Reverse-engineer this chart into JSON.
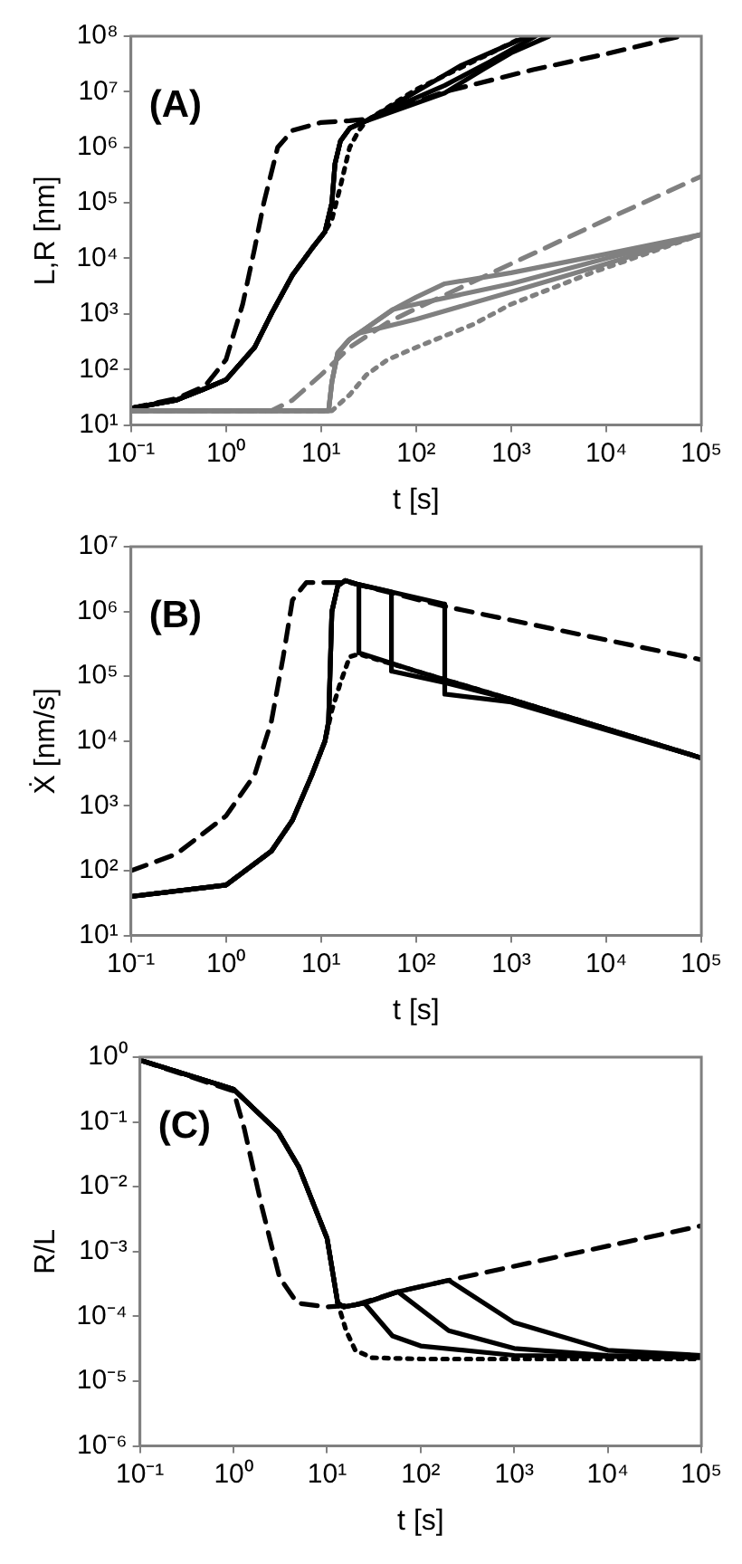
{
  "chart_data": [
    {
      "type": "line",
      "xlabel": "t [s]",
      "ylabel": "L,R [nm]",
      "annotations": [
        "(A)"
      ],
      "log": "xy",
      "xlim": [
        0.1,
        100000
      ],
      "ylim": [
        10,
        100000000
      ],
      "xticks": [
        {
          "value": 0.1,
          "label": "10⁻¹"
        },
        {
          "value": 1,
          "label": "10⁰"
        },
        {
          "value": 10,
          "label": "10¹"
        },
        {
          "value": 100,
          "label": "10²"
        },
        {
          "value": 1000,
          "label": "10³"
        },
        {
          "value": 10000,
          "label": "10⁴"
        },
        {
          "value": 100000,
          "label": "10⁵"
        }
      ],
      "yticks": [
        {
          "value": 10,
          "label": "10¹"
        },
        {
          "value": 100,
          "label": "10²"
        },
        {
          "value": 1000,
          "label": "10³"
        },
        {
          "value": 10000,
          "label": "10⁴"
        },
        {
          "value": 100000,
          "label": "10⁵"
        },
        {
          "value": 1000000,
          "label": "10⁶"
        },
        {
          "value": 10000000,
          "label": "10⁷"
        },
        {
          "value": 100000000,
          "label": "10⁸"
        }
      ],
      "series": [
        {
          "color": "#808080",
          "line_style": "dashed",
          "x": [
            0.1,
            3,
            5,
            10,
            20,
            50,
            100,
            1000,
            10000,
            100000
          ],
          "values": [
            18,
            18,
            28,
            80,
            250,
            700,
            1250,
            8000,
            50000,
            300000
          ]
        },
        {
          "color": "#808080",
          "line_style": "dotted",
          "x": [
            0.1,
            13,
            16,
            20,
            30,
            50,
            100,
            400,
            1000,
            7000,
            100000
          ],
          "values": [
            18,
            18,
            25,
            35,
            80,
            150,
            250,
            650,
            1500,
            5500,
            27000
          ]
        },
        {
          "color": "#808080",
          "line_style": "solid",
          "x": [
            0.1,
            12,
            13,
            15,
            20,
            25,
            100,
            1000,
            10000,
            100000
          ],
          "values": [
            18,
            18,
            60,
            200,
            350,
            450,
            800,
            2500,
            8000,
            27000
          ]
        },
        {
          "color": "#808080",
          "line_style": "solid",
          "x": [
            0.1,
            12,
            13,
            15,
            20,
            25,
            57,
            100,
            1000,
            10000,
            100000
          ],
          "values": [
            18,
            18,
            60,
            200,
            350,
            450,
            1200,
            1500,
            3500,
            10000,
            27000
          ]
        },
        {
          "color": "#808080",
          "line_style": "solid",
          "x": [
            0.1,
            12,
            13,
            15,
            20,
            25,
            57,
            100,
            200,
            1000,
            10000,
            100000
          ],
          "values": [
            18,
            18,
            60,
            200,
            350,
            450,
            1200,
            2000,
            3500,
            5500,
            12000,
            27000
          ]
        },
        {
          "color": "#000000",
          "line_style": "dashed",
          "x": [
            0.1,
            0.3,
            0.6,
            1,
            1.5,
            2,
            2.5,
            3.5,
            5,
            10,
            20,
            30,
            200,
            1700,
            10000,
            60000
          ],
          "values": [
            20,
            30,
            50,
            150,
            1500,
            15000,
            100000,
            1000000,
            2000000,
            2800000,
            3000000,
            3200000,
            10000000,
            25000000,
            48000000,
            100000000
          ]
        },
        {
          "color": "#000000",
          "line_style": "dotted",
          "x": [
            0.1,
            0.3,
            0.6,
            1,
            2,
            3,
            5,
            8,
            11,
            13,
            16,
            20,
            25,
            30,
            100,
            400,
            1400
          ],
          "values": [
            20,
            28,
            45,
            65,
            250,
            1000,
            5000,
            15000,
            30000,
            50000,
            200000,
            1000000,
            2000000,
            3000000,
            11000000,
            35000000,
            100000000
          ]
        },
        {
          "color": "#000000",
          "line_style": "solid",
          "x": [
            0.1,
            0.3,
            0.6,
            1,
            2,
            3,
            5,
            8,
            11,
            13,
            14,
            16,
            20,
            30,
            100,
            300,
            1500
          ],
          "values": [
            20,
            28,
            45,
            65,
            250,
            1000,
            5000,
            15000,
            30000,
            100000,
            500000,
            1300000,
            2200000,
            3000000,
            10000000,
            30000000,
            100000000
          ]
        },
        {
          "color": "#000000",
          "line_style": "solid",
          "x": [
            0.1,
            0.3,
            0.6,
            1,
            2,
            3,
            5,
            8,
            11,
            13,
            14,
            16,
            20,
            30,
            55,
            200,
            600,
            1800
          ],
          "values": [
            20,
            28,
            45,
            65,
            250,
            1000,
            5000,
            15000,
            30000,
            100000,
            500000,
            1300000,
            2200000,
            3000000,
            5000000,
            13000000,
            35000000,
            100000000
          ]
        },
        {
          "color": "#000000",
          "line_style": "solid",
          "x": [
            0.1,
            0.3,
            0.6,
            1,
            2,
            3,
            5,
            8,
            11,
            13,
            14,
            16,
            20,
            30,
            200,
            500,
            1000,
            2500
          ],
          "values": [
            20,
            28,
            45,
            65,
            250,
            1000,
            5000,
            15000,
            30000,
            100000,
            500000,
            1300000,
            2200000,
            3000000,
            9500000,
            25000000,
            50000000,
            100000000
          ]
        }
      ]
    },
    {
      "type": "line",
      "xlabel": "t [s]",
      "ylabel": "Ẋ [nm/s]",
      "annotations": [
        "(B)"
      ],
      "log": "xy",
      "xlim": [
        0.1,
        100000
      ],
      "ylim": [
        10,
        10000000
      ],
      "xticks": [
        {
          "value": 0.1,
          "label": "10⁻¹"
        },
        {
          "value": 1,
          "label": "10⁰"
        },
        {
          "value": 10,
          "label": "10¹"
        },
        {
          "value": 100,
          "label": "10²"
        },
        {
          "value": 1000,
          "label": "10³"
        },
        {
          "value": 10000,
          "label": "10⁴"
        },
        {
          "value": 100000,
          "label": "10⁵"
        }
      ],
      "yticks": [
        {
          "value": 10,
          "label": "10¹"
        },
        {
          "value": 100,
          "label": "10²"
        },
        {
          "value": 1000,
          "label": "10³"
        },
        {
          "value": 10000,
          "label": "10⁴"
        },
        {
          "value": 100000,
          "label": "10⁵"
        },
        {
          "value": 1000000,
          "label": "10⁶"
        },
        {
          "value": 10000000,
          "label": "10⁷"
        }
      ],
      "series": [
        {
          "color": "#000000",
          "line_style": "dashed",
          "x": [
            0.1,
            0.3,
            1,
            2,
            3,
            4,
            5,
            7,
            20,
            200,
            100000
          ],
          "values": [
            100,
            180,
            700,
            3000,
            20000,
            200000,
            1500000,
            2800000,
            2800000,
            1200000,
            180000
          ]
        },
        {
          "color": "#000000",
          "line_style": "dotted",
          "x": [
            0.1,
            1,
            3,
            5,
            8,
            11,
            13,
            16,
            20,
            25,
            1000,
            100000
          ],
          "values": [
            40,
            60,
            200,
            600,
            3000,
            10000,
            30000,
            80000,
            200000,
            220000,
            44000,
            5500
          ]
        },
        {
          "color": "#000000",
          "line_style": "solid",
          "x": [
            0.1,
            1,
            3,
            5,
            8,
            11,
            12,
            13,
            15,
            18,
            25,
            25,
            100,
            1000,
            100000
          ],
          "values": [
            40,
            60,
            200,
            600,
            3000,
            10000,
            20000,
            1000000,
            2500000,
            3000000,
            2600000,
            230000,
            120000,
            44000,
            5500
          ]
        },
        {
          "color": "#000000",
          "line_style": "solid",
          "x": [
            0.1,
            1,
            3,
            5,
            8,
            11,
            12,
            13,
            15,
            18,
            25,
            55,
            55,
            200,
            1000,
            100000
          ],
          "values": [
            40,
            60,
            200,
            600,
            3000,
            10000,
            20000,
            1000000,
            2500000,
            3000000,
            2600000,
            2000000,
            120000,
            80000,
            44000,
            5500
          ]
        },
        {
          "color": "#000000",
          "line_style": "solid",
          "x": [
            0.1,
            1,
            3,
            5,
            8,
            11,
            12,
            13,
            15,
            18,
            25,
            55,
            200,
            200,
            1000,
            100000
          ],
          "values": [
            40,
            60,
            200,
            600,
            3000,
            10000,
            20000,
            1000000,
            2500000,
            3000000,
            2600000,
            2000000,
            1300000,
            53000,
            40000,
            5500
          ]
        }
      ]
    },
    {
      "type": "line",
      "xlabel": "t [s]",
      "ylabel": "R/L",
      "annotations": [
        "(C)"
      ],
      "log": "xy",
      "xlim": [
        0.1,
        100000
      ],
      "ylim": [
        1e-06,
        1
      ],
      "xticks": [
        {
          "value": 0.1,
          "label": "10⁻¹"
        },
        {
          "value": 1,
          "label": "10⁰"
        },
        {
          "value": 10,
          "label": "10¹"
        },
        {
          "value": 100,
          "label": "10²"
        },
        {
          "value": 1000,
          "label": "10³"
        },
        {
          "value": 10000,
          "label": "10⁴"
        },
        {
          "value": 100000,
          "label": "10⁵"
        }
      ],
      "yticks": [
        {
          "value": 1e-06,
          "label": "10⁻⁶"
        },
        {
          "value": 1e-05,
          "label": "10⁻⁵"
        },
        {
          "value": 0.0001,
          "label": "10⁻⁴"
        },
        {
          "value": 0.001,
          "label": "10⁻³"
        },
        {
          "value": 0.01,
          "label": "10⁻²"
        },
        {
          "value": 0.1,
          "label": "10⁻¹"
        },
        {
          "value": 1,
          "label": "10⁰"
        }
      ],
      "series": [
        {
          "color": "#000000",
          "line_style": "dashed",
          "x": [
            0.1,
            1,
            1.3,
            2,
            3.1,
            4.8,
            10,
            20,
            57,
            200,
            100000
          ],
          "values": [
            0.9,
            0.3,
            0.08,
            0.005,
            0.0004,
            0.00016,
            0.00014,
            0.00015,
            0.00024,
            0.00036,
            0.0025
          ]
        },
        {
          "color": "#000000",
          "line_style": "dotted",
          "x": [
            0.1,
            1,
            3,
            5,
            10,
            13,
            16,
            20,
            30,
            100,
            100000
          ],
          "values": [
            0.9,
            0.32,
            0.07,
            0.02,
            0.0016,
            0.00016,
            6e-05,
            3e-05,
            2.3e-05,
            2.2e-05,
            2.2e-05
          ]
        },
        {
          "color": "#000000",
          "line_style": "solid",
          "x": [
            0.1,
            1,
            3,
            5,
            10,
            13,
            15,
            25,
            50,
            100,
            1000,
            100000
          ],
          "values": [
            0.9,
            0.32,
            0.07,
            0.02,
            0.0016,
            0.00016,
            0.00014,
            0.00016,
            5e-05,
            3.5e-05,
            2.5e-05,
            2.3e-05
          ]
        },
        {
          "color": "#000000",
          "line_style": "solid",
          "x": [
            0.1,
            1,
            3,
            5,
            10,
            13,
            15,
            25,
            57,
            200,
            1000,
            10000,
            100000
          ],
          "values": [
            0.9,
            0.32,
            0.07,
            0.02,
            0.0016,
            0.00016,
            0.00014,
            0.00016,
            0.00024,
            6e-05,
            3.2e-05,
            2.5e-05,
            2.4e-05
          ]
        },
        {
          "color": "#000000",
          "line_style": "solid",
          "x": [
            0.1,
            1,
            3,
            5,
            10,
            13,
            15,
            25,
            57,
            200,
            1000,
            10000,
            100000
          ],
          "values": [
            0.9,
            0.32,
            0.07,
            0.02,
            0.0016,
            0.00016,
            0.00014,
            0.00016,
            0.00024,
            0.00036,
            8e-05,
            3e-05,
            2.5e-05
          ]
        }
      ]
    }
  ]
}
